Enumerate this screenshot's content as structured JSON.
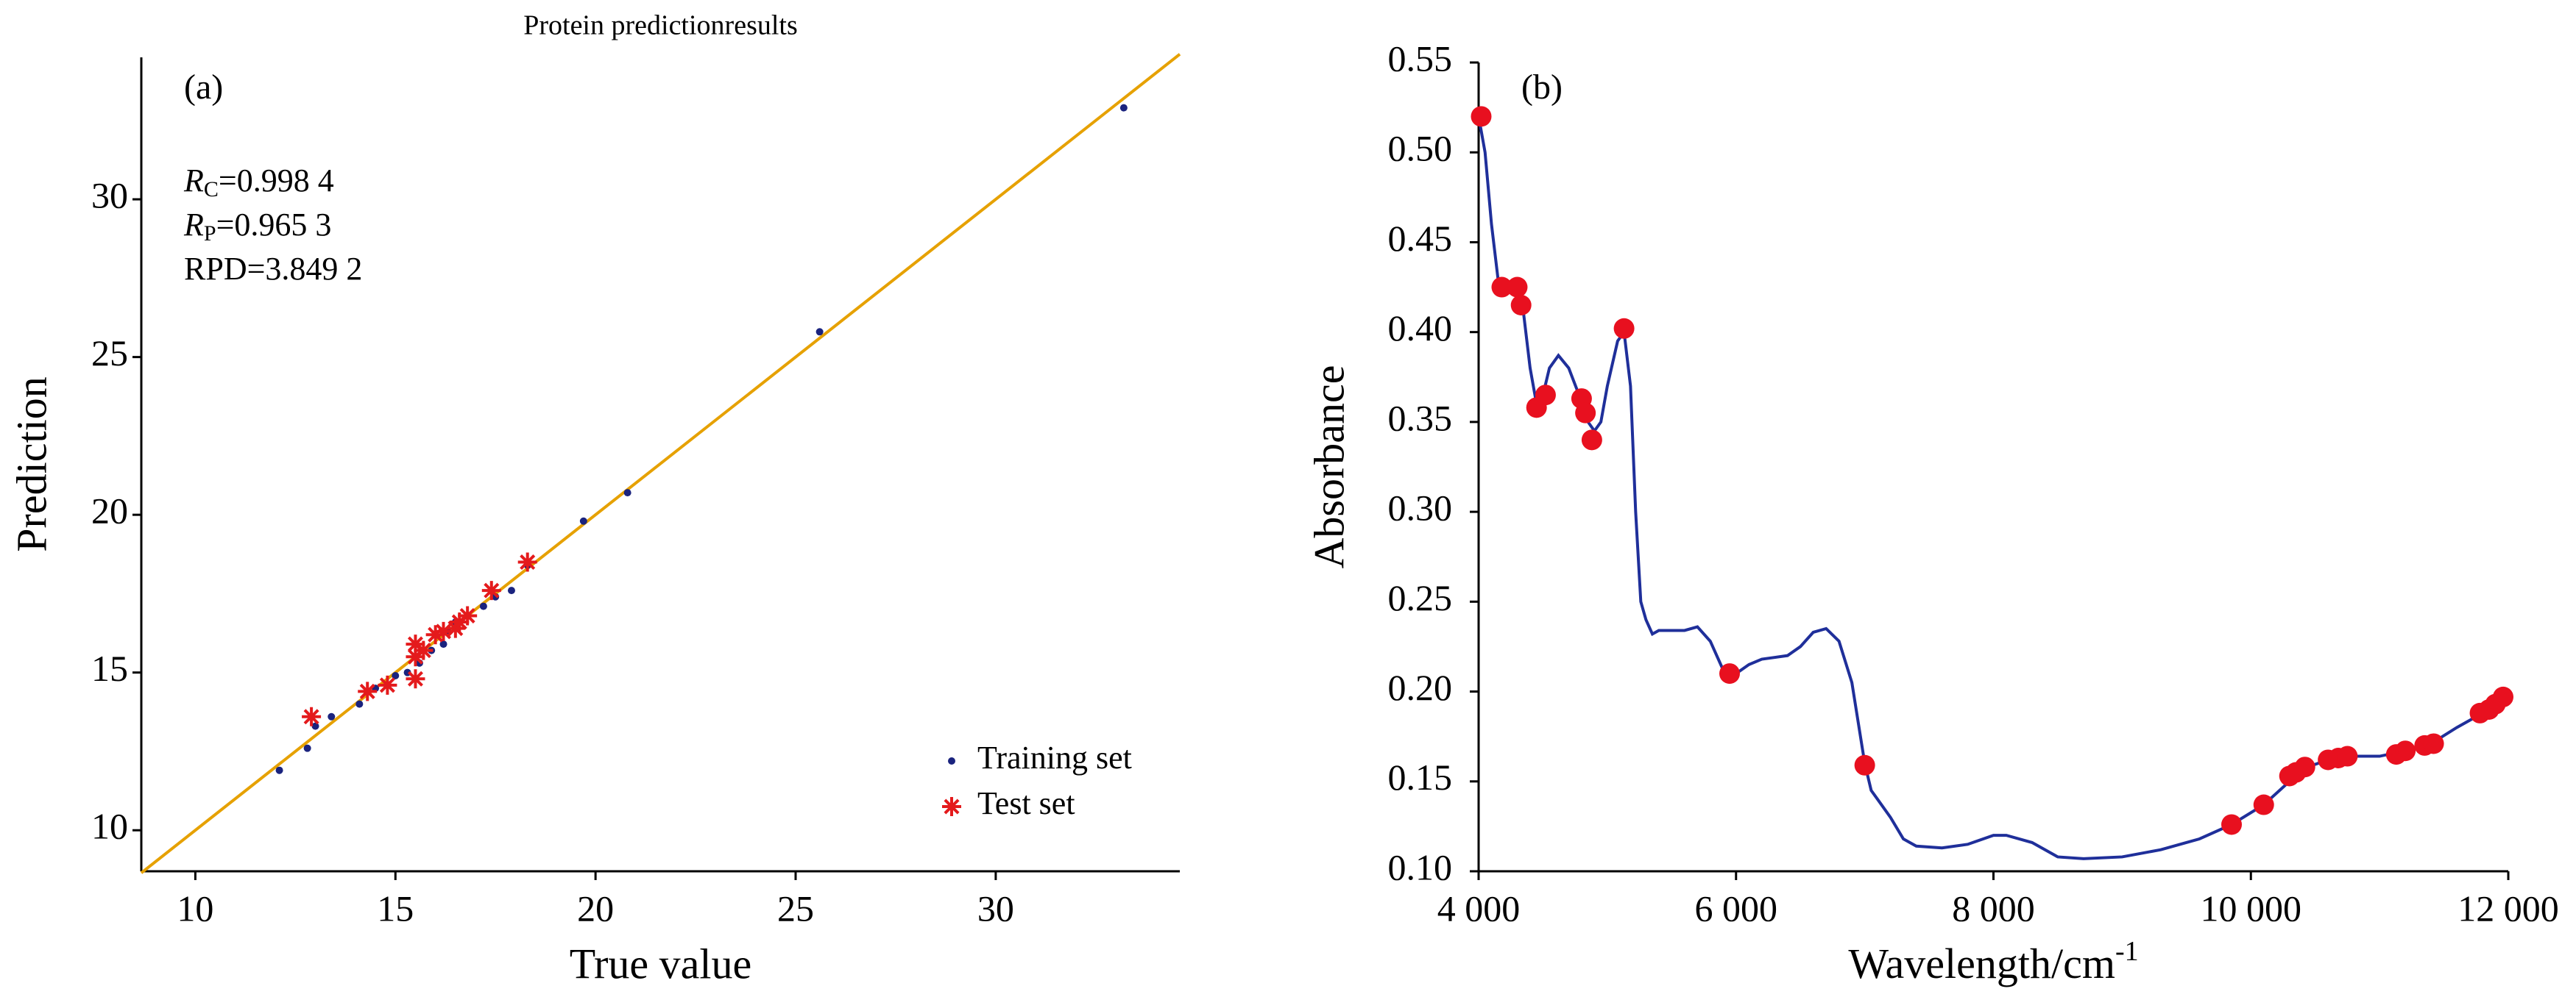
{
  "chart_data": [
    {
      "type": "scatter",
      "title": "Protein predictionresults",
      "panel_label": "(a)",
      "stats": [
        {
          "symbol": "R",
          "subscript": "C",
          "text": "=0.998 4"
        },
        {
          "symbol": "R",
          "subscript": "P",
          "text": "=0.965 3"
        },
        {
          "text": "RPD=3.849 2"
        }
      ],
      "x_label": "True value",
      "y_label": "Prediction",
      "xlim": [
        8.65,
        34.6
      ],
      "ylim": [
        8.7,
        34.5
      ],
      "xticks": [
        10,
        15,
        20,
        25,
        30
      ],
      "yticks": [
        10,
        15,
        20,
        25,
        30
      ],
      "reference_line": {
        "slope": 1,
        "intercept": 0,
        "color": "#e6a100"
      },
      "legend": "lower right",
      "series": [
        {
          "name": "Training set",
          "color": "#1a237e",
          "marker": "dot",
          "x": [
            12.1,
            12.8,
            13.0,
            13.4,
            14.1,
            14.5,
            15.0,
            15.3,
            15.6,
            15.9,
            16.2,
            16.3,
            16.5,
            16.8,
            17.2,
            17.5,
            17.9,
            18.3,
            19.7,
            20.8,
            25.6,
            33.2
          ],
          "values": [
            11.9,
            12.6,
            13.3,
            13.6,
            14.0,
            14.5,
            14.9,
            15.0,
            15.3,
            15.7,
            15.9,
            16.3,
            16.6,
            16.8,
            17.1,
            17.4,
            17.6,
            18.4,
            19.8,
            20.7,
            25.8,
            32.9
          ]
        },
        {
          "name": "Test set",
          "color": "#e41a1c",
          "marker": "star",
          "x": [
            12.9,
            14.3,
            14.8,
            15.5,
            15.5,
            15.7,
            16.0,
            16.5,
            16.6,
            16.8,
            17.4,
            18.3,
            15.5,
            16.2
          ],
          "values": [
            13.6,
            14.4,
            14.6,
            14.8,
            15.9,
            15.7,
            16.2,
            16.4,
            16.6,
            16.8,
            17.6,
            18.5,
            15.5,
            16.3
          ]
        }
      ]
    },
    {
      "type": "line",
      "panel_label": "(b)",
      "x_label": {
        "text": "Wavelength/cm",
        "superscript": "-1"
      },
      "y_label": "Absorbance",
      "xlim": [
        4000,
        12000
      ],
      "ylim": [
        0.1,
        0.55
      ],
      "xticks": [
        {
          "value": 4000,
          "label": "4 000"
        },
        {
          "value": 6000,
          "label": "6 000"
        },
        {
          "value": 8000,
          "label": "8 000"
        },
        {
          "value": 10000,
          "label": "10 000"
        },
        {
          "value": 12000,
          "label": "12 000"
        }
      ],
      "yticks": [
        {
          "value": 0.1,
          "label": "0.10"
        },
        0.15,
        {
          "value": 0.2,
          "label": "0.20"
        },
        0.25,
        {
          "value": 0.3,
          "label": "0.30"
        },
        0.35,
        {
          "value": 0.4,
          "label": "0.40"
        },
        0.45,
        {
          "value": 0.5,
          "label": "0.50"
        },
        0.55
      ],
      "series": [
        {
          "style": "line",
          "color": "#1f2f9a",
          "x": [
            4000,
            4050,
            4100,
            4150,
            4200,
            4300,
            4350,
            4400,
            4450,
            4500,
            4550,
            4620,
            4700,
            4780,
            4850,
            4900,
            4950,
            5000,
            5080,
            5130,
            5180,
            5220,
            5260,
            5300,
            5350,
            5400,
            5500,
            5600,
            5700,
            5800,
            5900,
            5950,
            6000,
            6100,
            6200,
            6400,
            6500,
            6600,
            6700,
            6800,
            6900,
            7000,
            7050,
            7100,
            7200,
            7300,
            7400,
            7600,
            7800,
            8000,
            8100,
            8300,
            8500,
            8700,
            9000,
            9300,
            9600,
            9850,
            10100,
            10300,
            10400,
            10600,
            10800,
            11000,
            11200,
            11400,
            11600,
            11800,
            11950,
            12000
          ],
          "values": [
            0.52,
            0.5,
            0.46,
            0.43,
            0.425,
            0.42,
            0.41,
            0.38,
            0.36,
            0.365,
            0.38,
            0.387,
            0.38,
            0.365,
            0.35,
            0.345,
            0.35,
            0.37,
            0.395,
            0.4,
            0.37,
            0.3,
            0.25,
            0.24,
            0.232,
            0.234,
            0.234,
            0.234,
            0.236,
            0.228,
            0.212,
            0.209,
            0.21,
            0.215,
            0.218,
            0.22,
            0.225,
            0.233,
            0.235,
            0.228,
            0.205,
            0.16,
            0.145,
            0.14,
            0.13,
            0.118,
            0.114,
            0.113,
            0.115,
            0.12,
            0.12,
            0.116,
            0.108,
            0.107,
            0.108,
            0.112,
            0.118,
            0.126,
            0.137,
            0.15,
            0.157,
            0.162,
            0.164,
            0.164,
            0.167,
            0.171,
            0.18,
            0.188,
            0.196,
            0.197
          ]
        },
        {
          "style": "points",
          "color": "#e8101f",
          "x": [
            4020,
            4180,
            4300,
            4330,
            4450,
            4520,
            4800,
            4830,
            4880,
            5130,
            5950,
            7000,
            9850,
            10100,
            10300,
            10350,
            10420,
            10600,
            10680,
            10750,
            11130,
            11200,
            11350,
            11420,
            11780,
            11850,
            11900,
            11960
          ],
          "values": [
            0.52,
            0.425,
            0.425,
            0.415,
            0.358,
            0.365,
            0.363,
            0.355,
            0.34,
            0.402,
            0.21,
            0.159,
            0.126,
            0.137,
            0.153,
            0.155,
            0.158,
            0.162,
            0.163,
            0.164,
            0.165,
            0.167,
            0.17,
            0.171,
            0.188,
            0.19,
            0.193,
            0.197
          ]
        }
      ]
    }
  ]
}
